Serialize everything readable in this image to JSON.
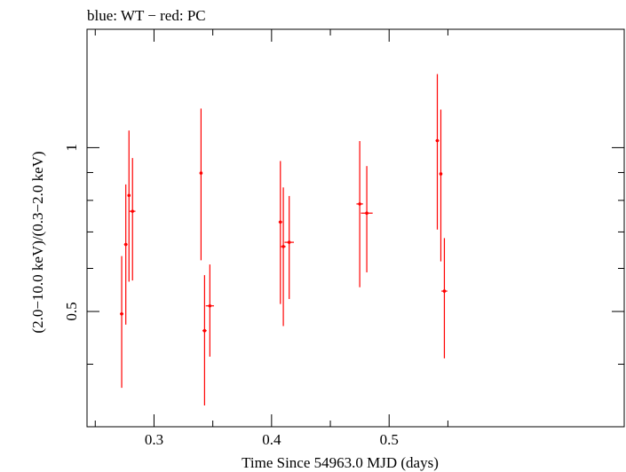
{
  "chart_data": {
    "type": "scatter",
    "title": "blue: WT − red: PC",
    "xlabel": "Time Since 54963.0 MJD (days)",
    "ylabel": "(2.0−10.0 keV)/(0.3−2.0 keV)",
    "xlim": [
      0.243,
      0.7
    ],
    "ylim": [
      0.307,
      1.65
    ],
    "y_scale": "log",
    "x_major_ticks": [
      0.3,
      0.4,
      0.5
    ],
    "x_major_tick_labels": [
      "0.3",
      "0.4",
      "0.5"
    ],
    "x_minor_ticks": [
      0.25,
      0.35,
      0.45,
      0.55
    ],
    "y_major_ticks": [
      0.5,
      1
    ],
    "y_major_tick_labels": [
      "0.5",
      "1"
    ],
    "y_minor_ticks": [
      0.4,
      0.6,
      0.7,
      0.8,
      0.9
    ],
    "grid": false,
    "series": [
      {
        "name": "PC",
        "color": "#ff0000",
        "points": [
          {
            "x": 0.2725,
            "y": 0.495,
            "xerr": 0.0015,
            "ylo": 0.362,
            "yhi": 0.632
          },
          {
            "x": 0.276,
            "y": 0.664,
            "xerr": 0.0015,
            "ylo": 0.473,
            "yhi": 0.856
          },
          {
            "x": 0.2787,
            "y": 0.817,
            "xerr": 0.0013,
            "ylo": 0.567,
            "yhi": 1.075
          },
          {
            "x": 0.2817,
            "y": 0.764,
            "xerr": 0.0025,
            "ylo": 0.57,
            "yhi": 0.957
          },
          {
            "x": 0.34,
            "y": 0.898,
            "xerr": 0.0012,
            "ylo": 0.621,
            "yhi": 1.18
          },
          {
            "x": 0.343,
            "y": 0.461,
            "xerr": 0.0018,
            "ylo": 0.336,
            "yhi": 0.583
          },
          {
            "x": 0.3475,
            "y": 0.512,
            "xerr": 0.0035,
            "ylo": 0.413,
            "yhi": 0.61
          },
          {
            "x": 0.4075,
            "y": 0.73,
            "xerr": 0.0015,
            "ylo": 0.516,
            "yhi": 0.945
          },
          {
            "x": 0.41,
            "y": 0.658,
            "xerr": 0.002,
            "ylo": 0.47,
            "yhi": 0.845
          },
          {
            "x": 0.415,
            "y": 0.67,
            "xerr": 0.004,
            "ylo": 0.527,
            "yhi": 0.815
          },
          {
            "x": 0.475,
            "y": 0.788,
            "xerr": 0.0028,
            "ylo": 0.554,
            "yhi": 1.028
          },
          {
            "x": 0.481,
            "y": 0.758,
            "xerr": 0.005,
            "ylo": 0.59,
            "yhi": 0.925
          },
          {
            "x": 0.541,
            "y": 1.03,
            "xerr": 0.0015,
            "ylo": 0.707,
            "yhi": 1.365
          },
          {
            "x": 0.544,
            "y": 0.895,
            "xerr": 0.001,
            "ylo": 0.618,
            "yhi": 1.175
          },
          {
            "x": 0.547,
            "y": 0.545,
            "xerr": 0.0025,
            "ylo": 0.41,
            "yhi": 0.682
          }
        ]
      }
    ]
  }
}
